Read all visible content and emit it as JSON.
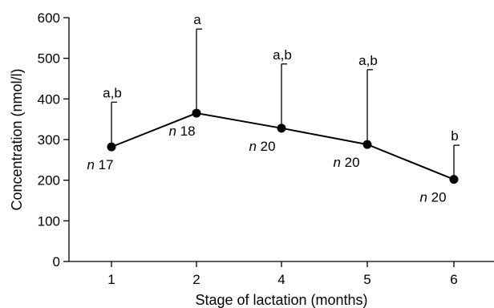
{
  "chart_data": {
    "type": "line",
    "title": "",
    "xlabel": "Stage of lactation (months)",
    "ylabel": "Concentration (nmol/l)",
    "categories": [
      "1",
      "2",
      "4",
      "5",
      "6"
    ],
    "ylim": [
      0,
      600
    ],
    "yticks": [
      "0",
      "100",
      "200",
      "300",
      "400",
      "500",
      "600"
    ],
    "series": [
      {
        "values": [
          282,
          365,
          328,
          288,
          202
        ],
        "error_upper": [
          392,
          572,
          486,
          472,
          286
        ],
        "annotations": [
          "a,b",
          "a",
          "a,b",
          "a,b",
          "b"
        ],
        "n_prefix": [
          "n",
          "n",
          "n",
          "n",
          "n"
        ],
        "n_values": [
          "17",
          "18",
          "20",
          "20",
          "20"
        ]
      }
    ],
    "grid": false,
    "legend": "none"
  }
}
